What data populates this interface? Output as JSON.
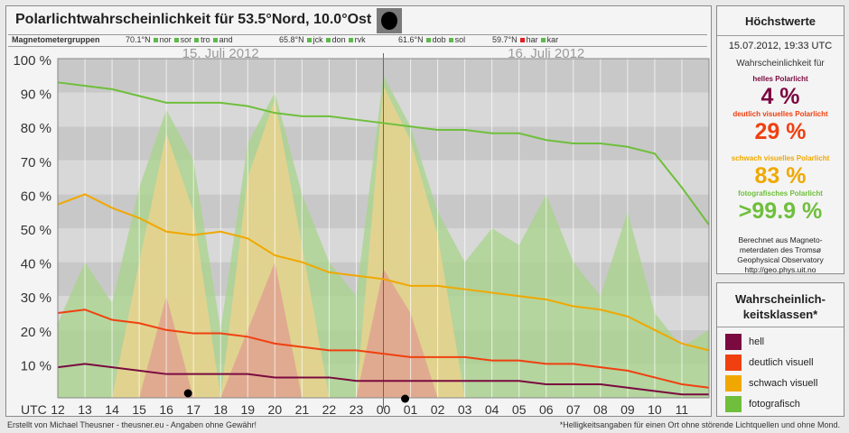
{
  "title": "Polarlichtwahrscheinlichkeit für 53.5°Nord, 10.0°Ost",
  "groups": {
    "header": "Magnetometergruppen",
    "items": [
      {
        "lat": "70.1°N",
        "stations": [
          {
            "code": "nor",
            "color": "#5db94a"
          },
          {
            "code": "sor",
            "color": "#5db94a"
          },
          {
            "code": "tro",
            "color": "#5db94a"
          },
          {
            "code": "and",
            "color": "#5db94a"
          }
        ]
      },
      {
        "lat": "65.8°N",
        "stations": [
          {
            "code": "jck",
            "color": "#5db94a"
          },
          {
            "code": "don",
            "color": "#5db94a"
          },
          {
            "code": "rvk",
            "color": "#5db94a"
          }
        ]
      },
      {
        "lat": "61.6°N",
        "stations": [
          {
            "code": "dob",
            "color": "#5db94a"
          },
          {
            "code": "sol",
            "color": "#5db94a"
          }
        ]
      },
      {
        "lat": "59.7°N",
        "stations": [
          {
            "code": "har",
            "color": "#e02020"
          },
          {
            "code": "kar",
            "color": "#5db94a"
          }
        ]
      }
    ]
  },
  "chart_data": {
    "type": "area",
    "y_ticks": [
      "10 %",
      "20 %",
      "30 %",
      "40 %",
      "50 %",
      "60 %",
      "70 %",
      "80 %",
      "90 %",
      "100 %"
    ],
    "ylim": [
      0,
      100
    ],
    "x_label": "UTC",
    "x_ticks": [
      "12",
      "13",
      "14",
      "15",
      "16",
      "17",
      "18",
      "19",
      "20",
      "21",
      "22",
      "23",
      "00",
      "01",
      "02",
      "03",
      "04",
      "05",
      "06",
      "07",
      "08",
      "09",
      "10",
      "11"
    ],
    "x_range_hours": [
      12,
      36
    ],
    "dates": [
      "15. Juli 2012",
      "16. Juli 2012"
    ],
    "series": [
      {
        "name": "fotografisch",
        "color": "#6fbf3c",
        "x": [
          12,
          13,
          14,
          15,
          16,
          17,
          18,
          19,
          20,
          21,
          22,
          23,
          24,
          25,
          26,
          27,
          28,
          29,
          30,
          31,
          32,
          33,
          34,
          35,
          36
        ],
        "values": [
          93,
          92,
          91,
          89,
          87,
          87,
          87,
          86,
          84,
          83,
          83,
          82,
          81,
          80,
          79,
          79,
          78,
          78,
          76,
          75,
          75,
          74,
          72,
          62,
          51
        ]
      },
      {
        "name": "schwach visuell",
        "color": "#f0a800",
        "x": [
          12,
          13,
          14,
          15,
          16,
          17,
          18,
          19,
          20,
          21,
          22,
          23,
          24,
          25,
          26,
          27,
          28,
          29,
          30,
          31,
          32,
          33,
          34,
          35,
          36
        ],
        "values": [
          57,
          60,
          56,
          53,
          49,
          48,
          49,
          47,
          42,
          40,
          37,
          36,
          35,
          33,
          33,
          32,
          31,
          30,
          29,
          27,
          26,
          24,
          20,
          16,
          14
        ]
      },
      {
        "name": "deutlich visuell",
        "color": "#f04010",
        "x": [
          12,
          13,
          14,
          15,
          16,
          17,
          18,
          19,
          20,
          21,
          22,
          23,
          24,
          25,
          26,
          27,
          28,
          29,
          30,
          31,
          32,
          33,
          34,
          35,
          36
        ],
        "values": [
          25,
          26,
          23,
          22,
          20,
          19,
          19,
          18,
          16,
          15,
          14,
          14,
          13,
          12,
          12,
          12,
          11,
          11,
          10,
          10,
          9,
          8,
          6,
          4,
          3
        ]
      },
      {
        "name": "hell",
        "color": "#7a0a40",
        "x": [
          12,
          13,
          14,
          15,
          16,
          17,
          18,
          19,
          20,
          21,
          22,
          23,
          24,
          25,
          26,
          27,
          28,
          29,
          30,
          31,
          32,
          33,
          34,
          35,
          36
        ],
        "values": [
          9,
          10,
          9,
          8,
          7,
          7,
          7,
          7,
          6,
          6,
          6,
          5,
          5,
          5,
          5,
          5,
          5,
          5,
          4,
          4,
          4,
          3,
          2,
          1,
          1
        ]
      }
    ],
    "activity_bands": {
      "x": [
        12,
        13,
        14,
        15,
        16,
        17,
        18,
        19,
        20,
        21,
        22,
        23,
        24,
        25,
        26,
        27,
        28,
        29,
        30,
        31,
        32,
        33,
        34,
        35,
        36
      ],
      "fotografisch": [
        22,
        40,
        28,
        62,
        85,
        70,
        20,
        75,
        90,
        60,
        40,
        30,
        95,
        80,
        55,
        40,
        50,
        45,
        60,
        40,
        30,
        55,
        25,
        15,
        20
      ],
      "schwach": [
        0,
        0,
        0,
        40,
        78,
        55,
        0,
        65,
        88,
        45,
        0,
        0,
        92,
        76,
        48,
        0,
        0,
        0,
        0,
        0,
        0,
        0,
        0,
        0,
        0
      ],
      "deutlich": [
        0,
        0,
        0,
        0,
        30,
        0,
        0,
        20,
        40,
        0,
        0,
        0,
        38,
        25,
        0,
        0,
        0,
        0,
        0,
        0,
        0,
        0,
        0,
        0,
        0
      ]
    },
    "legend": [
      "hell",
      "deutlich visuell",
      "schwach visuell",
      "fotografisch"
    ]
  },
  "hoechstwerte": {
    "title": "Höchstwerte",
    "date": "15.07.2012, 19:33 UTC",
    "label_line1": "Wahrscheinlichkeit für",
    "classes": [
      {
        "label": "helles Polarlicht",
        "value": "4 %",
        "color": "#7a0a40"
      },
      {
        "label": "deutlich visuelles Polarlicht",
        "value": "29 %",
        "color": "#f04010"
      },
      {
        "label": "schwach visuelles Polarlicht",
        "value": "83 %",
        "color": "#f0a800"
      },
      {
        "label": "fotografisches Polarlicht",
        "value": ">99.9 %",
        "color": "#6fbf3c"
      }
    ],
    "note_lines": [
      "Berechnet aus Magneto-",
      "meterdaten des Tromsø",
      "Geophysical Observatory",
      "http://geo.phys.uit.no"
    ]
  },
  "klassen": {
    "title_line1": "Wahrscheinlich-",
    "title_line2": "keitsklassen*",
    "items": [
      {
        "label": "hell",
        "color": "#7a0a40"
      },
      {
        "label": "deutlich visuell",
        "color": "#f04010"
      },
      {
        "label": "schwach visuell",
        "color": "#f0a800"
      },
      {
        "label": "fotografisch",
        "color": "#6fbf3c"
      }
    ]
  },
  "footer": {
    "left": "Erstellt von Michael Theusner - theusner.eu - Angaben ohne Gewähr!",
    "right": "*Helligkeitsangaben für einen Ort ohne störende Lichtquellen und ohne Mond."
  }
}
